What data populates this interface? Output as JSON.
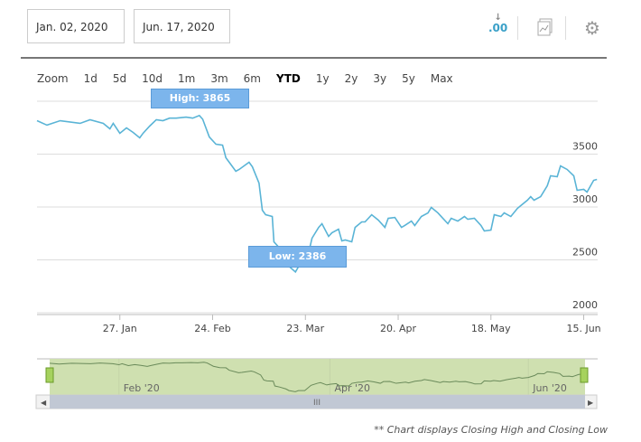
{
  "date_range": {
    "start": "Jan. 02, 2020",
    "end": "Jun. 17, 2020"
  },
  "toolbar": {
    "decimals_label": ".00",
    "icons": [
      "decimals-icon",
      "chart-type-icon",
      "gear-icon"
    ]
  },
  "zoom": {
    "label": "Zoom",
    "options": [
      "1d",
      "5d",
      "10d",
      "1m",
      "3m",
      "6m",
      "YTD",
      "1y",
      "2y",
      "3y",
      "5y",
      "Max"
    ],
    "selected": "YTD"
  },
  "colors": {
    "line": "#5ab4d6",
    "tooltip": "#7cb5ec",
    "navigator": "#cfe0b0"
  },
  "tooltips": {
    "high": "High: 3865",
    "low": "Low: 2386"
  },
  "navigator": {
    "labels": [
      "Feb '20",
      "Apr '20",
      "Jun '20"
    ],
    "scroll_grip": "III"
  },
  "footnote": "** Chart displays Closing High and Closing Low",
  "chart_data": {
    "type": "line",
    "x_unit": "days since 2020-01-02",
    "xticks": [
      "27. Jan",
      "24. Feb",
      "23. Mar",
      "20. Apr",
      "18. May",
      "15. Jun"
    ],
    "yticks": [
      "2000",
      "2500",
      "3000",
      "3500"
    ],
    "ylim": [
      2000,
      4000
    ],
    "grid": true,
    "x": [
      0,
      3,
      7,
      13,
      16,
      20,
      22,
      23,
      25,
      27,
      29,
      31,
      32,
      34,
      36,
      38,
      40,
      42,
      45,
      47,
      49,
      50,
      52,
      54,
      56,
      57,
      60,
      61,
      64,
      65,
      67,
      68,
      69,
      71,
      71.5,
      73,
      75,
      76,
      78,
      79,
      81,
      83,
      85,
      86,
      88,
      89,
      91,
      92,
      93,
      95,
      96,
      98,
      99,
      101,
      103,
      105,
      106,
      108,
      110,
      111,
      113,
      114,
      116,
      118,
      119,
      121,
      122,
      124,
      125,
      127,
      129,
      130,
      132,
      134,
      135,
      137,
      138,
      140,
      141,
      143,
      145,
      146,
      148,
      149,
      150,
      152,
      154,
      155,
      157,
      158,
      160,
      162,
      163,
      165,
      166,
      168,
      169
    ],
    "values": [
      3816,
      3774,
      3816,
      3791,
      3825,
      3791,
      3739,
      3791,
      3697,
      3748,
      3705,
      3654,
      3697,
      3765,
      3825,
      3816,
      3840,
      3840,
      3850,
      3840,
      3865,
      3830,
      3662,
      3594,
      3585,
      3466,
      3338,
      3355,
      3423,
      3380,
      3226,
      2970,
      2927,
      2910,
      2671,
      2619,
      2525,
      2440,
      2386,
      2440,
      2440,
      2705,
      2807,
      2842,
      2722,
      2756,
      2790,
      2679,
      2688,
      2671,
      2807,
      2859,
      2859,
      2927,
      2876,
      2807,
      2893,
      2901,
      2807,
      2825,
      2867,
      2825,
      2910,
      2944,
      2996,
      2944,
      2910,
      2842,
      2893,
      2867,
      2910,
      2884,
      2893,
      2825,
      2773,
      2782,
      2927,
      2910,
      2944,
      2910,
      2987,
      3013,
      3064,
      3098,
      3064,
      3098,
      3201,
      3295,
      3286,
      3389,
      3355,
      3295,
      3158,
      3167,
      3141,
      3252,
      3261
    ]
  }
}
